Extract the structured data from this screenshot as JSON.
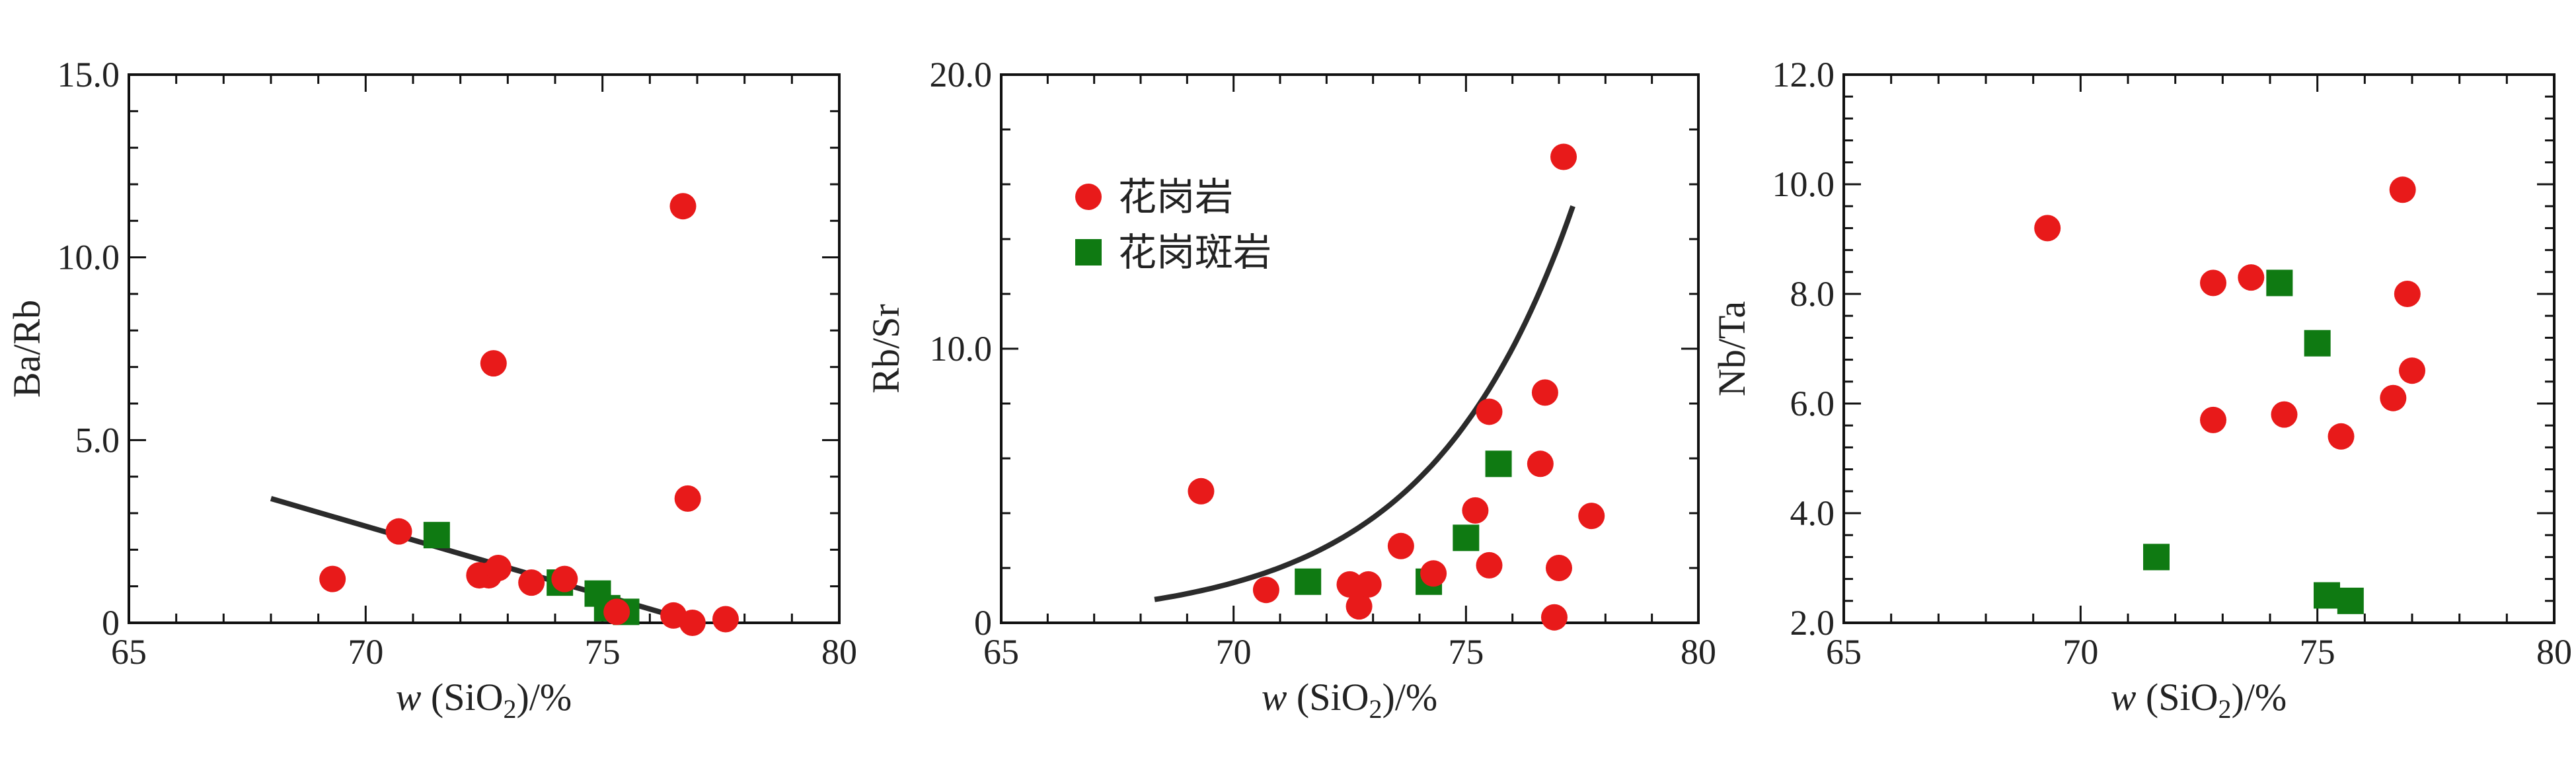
{
  "colors": {
    "granite": "#e81a1a",
    "granite_porphyry": "#0f7a12",
    "trend": "#2b2b2b",
    "axis": "#111111"
  },
  "legend": {
    "granite": "花岗岩",
    "granite_porphyry": "花岗斑岩"
  },
  "chart_data": [
    {
      "type": "scatter",
      "xlabel": {
        "italic": "w",
        "main": " (SiO",
        "sub": "2",
        "tail": ")/%"
      },
      "ylabel": "Ba/Rb",
      "xlim": [
        65,
        80
      ],
      "ylim": [
        0,
        15
      ],
      "xticks": [
        65,
        70,
        75,
        80
      ],
      "xtick_labels": [
        "65",
        "70",
        "75",
        "80"
      ],
      "yticks": [
        0,
        5,
        10,
        15
      ],
      "ytick_labels": [
        "0",
        "5.0",
        "10.0",
        "15.0"
      ],
      "series": [
        {
          "name": "花岗岩",
          "marker": "circle",
          "x": [
            69.3,
            70.7,
            72.4,
            72.6,
            72.7,
            72.8,
            73.5,
            74.2,
            75.3,
            76.5,
            76.7,
            76.8,
            76.9,
            77.6
          ],
          "y": [
            1.2,
            2.5,
            1.3,
            1.3,
            7.1,
            1.5,
            1.1,
            1.2,
            0.3,
            0.2,
            11.4,
            3.4,
            0.0,
            0.1
          ]
        },
        {
          "name": "花岗斑岩",
          "marker": "square",
          "x": [
            71.5,
            74.1,
            74.9,
            75.1,
            75.5
          ],
          "y": [
            2.4,
            1.1,
            0.8,
            0.4,
            0.3
          ]
        }
      ],
      "trend": {
        "type": "linear",
        "x": [
          68,
          77
        ],
        "y": [
          3.4,
          0.0
        ]
      }
    },
    {
      "type": "scatter",
      "xlabel": {
        "italic": "w",
        "main": " (SiO",
        "sub": "2",
        "tail": ")/%"
      },
      "ylabel": "Rb/Sr",
      "xlim": [
        65,
        80
      ],
      "ylim": [
        0,
        20
      ],
      "xticks": [
        65,
        70,
        75,
        80
      ],
      "xtick_labels": [
        "65",
        "70",
        "75",
        "80"
      ],
      "yticks": [
        0,
        10,
        20
      ],
      "ytick_labels": [
        "0",
        "10.0",
        "20.0"
      ],
      "series": [
        {
          "name": "花岗岩",
          "marker": "circle",
          "x": [
            69.3,
            70.7,
            72.5,
            72.7,
            72.9,
            73.6,
            74.3,
            75.2,
            75.5,
            75.5,
            76.6,
            76.7,
            76.9,
            77.0,
            77.1,
            77.7
          ],
          "y": [
            4.8,
            1.2,
            1.4,
            0.6,
            1.4,
            2.8,
            1.8,
            4.1,
            7.7,
            2.1,
            5.8,
            8.4,
            0.2,
            2.0,
            17.0,
            3.9
          ]
        },
        {
          "name": "花岗斑岩",
          "marker": "square",
          "x": [
            71.6,
            74.2,
            75.0,
            75.7
          ],
          "y": [
            1.5,
            1.5,
            3.1,
            5.8
          ]
        }
      ],
      "trend": {
        "type": "exponential",
        "x_start": 68.3,
        "x_end": 77.3,
        "y_start": 0.85,
        "y_end": 15.2
      }
    },
    {
      "type": "scatter",
      "xlabel": {
        "italic": "w",
        "main": " (SiO",
        "sub": "2",
        "tail": ")/%"
      },
      "ylabel": "Nb/Ta",
      "xlim": [
        65,
        80
      ],
      "ylim": [
        2,
        12
      ],
      "xticks": [
        65,
        70,
        75,
        80
      ],
      "xtick_labels": [
        "65",
        "70",
        "75",
        "80"
      ],
      "yticks": [
        2,
        4,
        6,
        8,
        10,
        12
      ],
      "ytick_labels": [
        "2.0",
        "4.0",
        "6.0",
        "8.0",
        "10.0",
        "12.0"
      ],
      "series": [
        {
          "name": "花岗岩",
          "marker": "circle",
          "x": [
            69.3,
            72.8,
            72.8,
            73.6,
            74.3,
            75.5,
            76.6,
            76.8,
            76.9,
            77.0
          ],
          "y": [
            9.2,
            8.2,
            5.7,
            8.3,
            5.8,
            5.4,
            6.1,
            9.9,
            8.0,
            6.6
          ]
        },
        {
          "name": "花岗斑岩",
          "marker": "square",
          "x": [
            71.6,
            74.2,
            75.0,
            75.2,
            75.7
          ],
          "y": [
            3.2,
            8.2,
            7.1,
            2.5,
            2.4
          ]
        }
      ]
    }
  ]
}
